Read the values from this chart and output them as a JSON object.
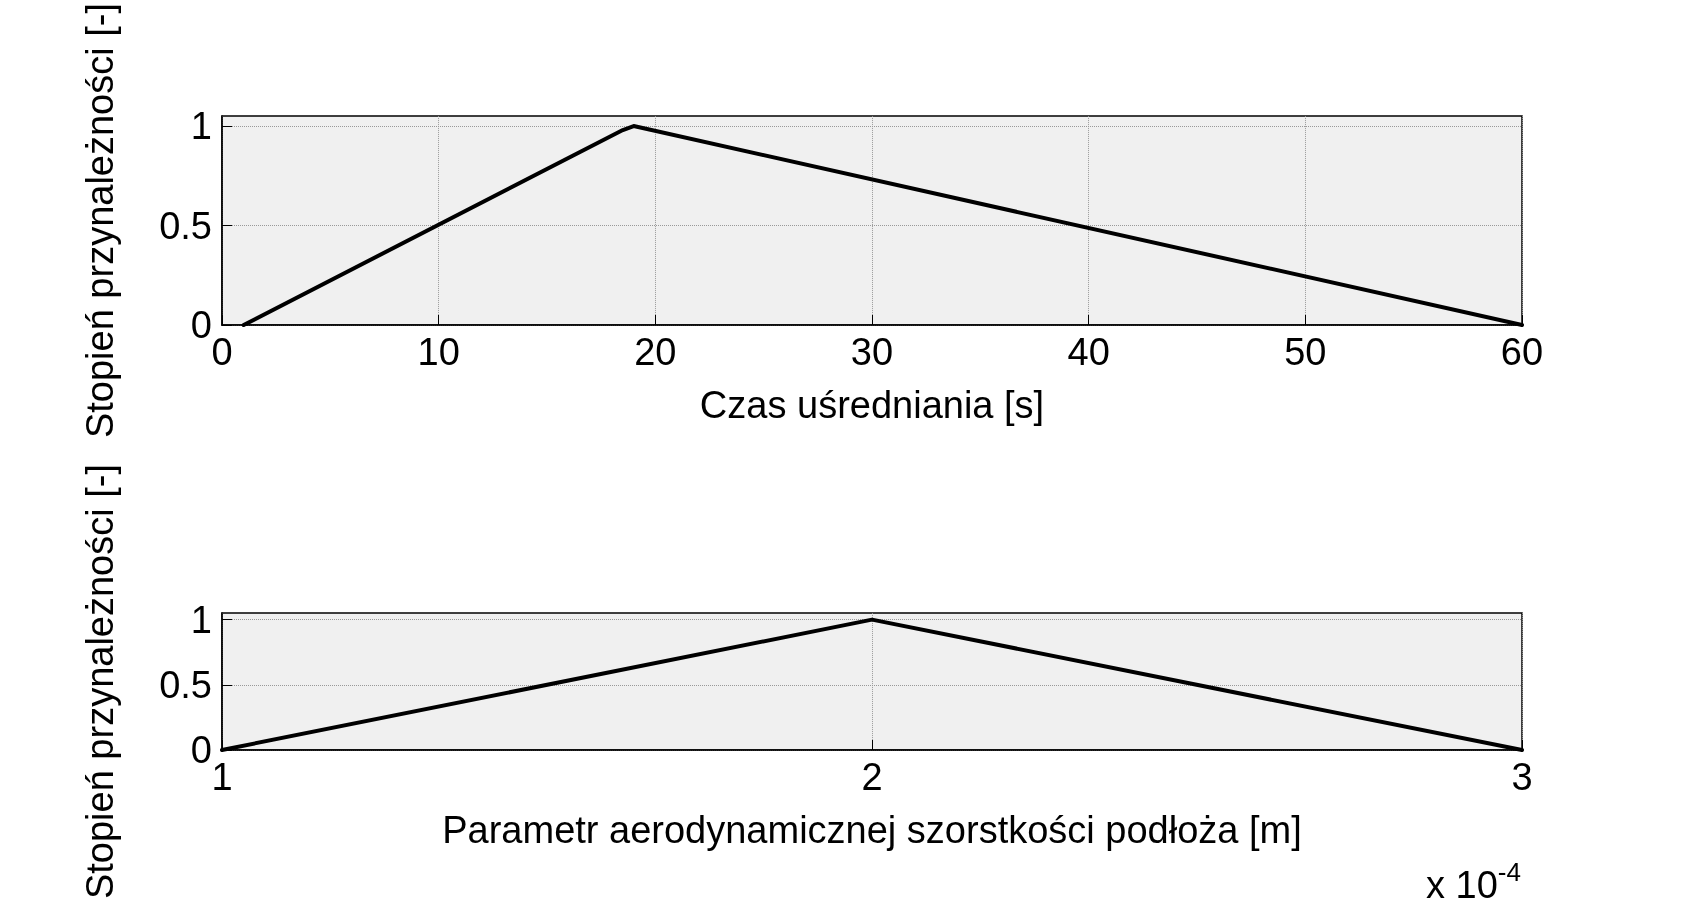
{
  "chart_data": [
    {
      "type": "line",
      "xlabel": "Czas uśredniania [s]",
      "ylabel": "Stopień przynależności [-]",
      "xlim": [
        0,
        60
      ],
      "xticks": [
        0,
        10,
        20,
        30,
        40,
        50,
        60
      ],
      "ylim": [
        0,
        1.05
      ],
      "yticks": [
        0,
        0.5,
        1
      ],
      "grid": true,
      "marker": "none",
      "line_style": "solid",
      "series": [
        {
          "color": "#000000",
          "x": [
            1,
            18.5,
            19,
            60
          ],
          "values": [
            0,
            0.98,
            1,
            0
          ]
        }
      ]
    },
    {
      "type": "line",
      "xlabel": "Parametr aerodynamicznej szorstkości podłoża [m]",
      "ylabel": "Stopień przynależności [-]",
      "xlim": [
        1,
        3
      ],
      "xticks": [
        1,
        2,
        3
      ],
      "ylim": [
        0,
        1.05
      ],
      "yticks": [
        0,
        0.5,
        1
      ],
      "grid": true,
      "marker": "none",
      "line_style": "solid",
      "annotations": [
        "x 10$^{-4}$"
      ],
      "series": [
        {
          "color": "#000000",
          "x": [
            1,
            2,
            3
          ],
          "values": [
            0,
            1,
            0
          ]
        }
      ]
    }
  ]
}
